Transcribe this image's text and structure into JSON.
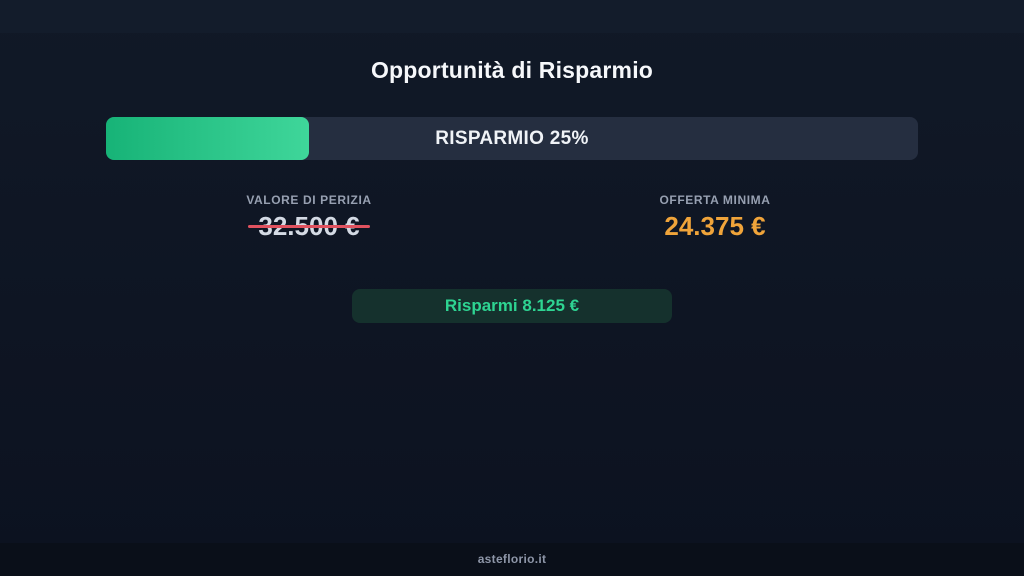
{
  "page": {
    "title": "Opportunità di Risparmio",
    "footer_text": "asteflorio.it"
  },
  "savings_bar": {
    "label": "RISPARMIO 25%",
    "percent": 25
  },
  "stats": [
    {
      "label": "VALORE DI PERIZIA",
      "value": "32.500 €",
      "strikethrough": true
    },
    {
      "label": "OFFERTA MINIMA",
      "value": "24.375 €",
      "strikethrough": false
    }
  ],
  "savings_badge": {
    "label": "Risparmi 8.125 €"
  },
  "colors": {
    "background_top": "#131c2b",
    "background_main": "#0e1523",
    "footer_background": "#0a0f19",
    "bar_track": "#252e40",
    "bar_fill_start": "#17b377",
    "bar_fill_end": "#3fd69a",
    "strikethrough_line": "#e0525f",
    "old_value_text": "#d4dae4",
    "new_value_text": "#f0a43a",
    "badge_background": "#15312d",
    "badge_text": "#2ed492",
    "muted_label": "#97a0b1"
  }
}
